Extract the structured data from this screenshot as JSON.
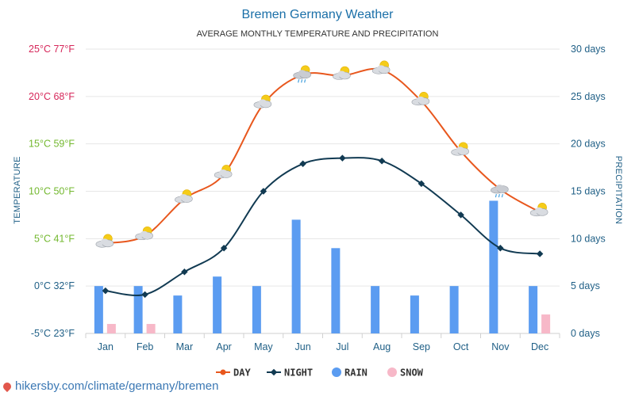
{
  "chart_data": {
    "type": "line",
    "title": "Bremen Germany Weather",
    "subtitle": "AVERAGE MONTHLY TEMPERATURE AND PRECIPITATION",
    "ylabel_left": "TEMPERATURE",
    "ylabel_right": "PRECIPITATION",
    "categories": [
      "Jan",
      "Feb",
      "Mar",
      "Apr",
      "May",
      "Jun",
      "Jul",
      "Aug",
      "Sep",
      "Oct",
      "Nov",
      "Dec"
    ],
    "left_axis": {
      "unit": "°C",
      "range": [
        -5,
        25
      ],
      "ticks": [
        {
          "value": -5,
          "label": "-5°C 23°F",
          "color": "#1f5f86"
        },
        {
          "value": 0,
          "label": "0°C 32°F",
          "color": "#1f5f86"
        },
        {
          "value": 5,
          "label": "5°C 41°F",
          "color": "#73b82f"
        },
        {
          "value": 10,
          "label": "10°C 50°F",
          "color": "#73b82f"
        },
        {
          "value": 15,
          "label": "15°C 59°F",
          "color": "#73b82f"
        },
        {
          "value": 20,
          "label": "20°C 68°F",
          "color": "#d6275a"
        },
        {
          "value": 25,
          "label": "25°C 77°F",
          "color": "#d6275a"
        }
      ]
    },
    "right_axis": {
      "unit": "days",
      "range": [
        0,
        30
      ],
      "ticks": [
        {
          "value": 0,
          "label": "0 days"
        },
        {
          "value": 5,
          "label": "5 days"
        },
        {
          "value": 10,
          "label": "10 days"
        },
        {
          "value": 15,
          "label": "15 days"
        },
        {
          "value": 20,
          "label": "20 days"
        },
        {
          "value": 25,
          "label": "25 days"
        },
        {
          "value": 30,
          "label": "30 days"
        }
      ]
    },
    "series": [
      {
        "name": "DAY",
        "kind": "line",
        "axis": "left",
        "color": "#e8571d",
        "values": [
          4.5,
          5.3,
          9.2,
          11.8,
          19.2,
          22.3,
          22.2,
          22.8,
          19.5,
          14.2,
          10.2,
          7.8
        ]
      },
      {
        "name": "NIGHT",
        "kind": "line",
        "axis": "left",
        "color": "#113a52",
        "values": [
          -0.5,
          -0.9,
          1.5,
          4.0,
          10.0,
          12.9,
          13.5,
          13.2,
          10.8,
          7.5,
          4.0,
          3.4
        ]
      },
      {
        "name": "RAIN",
        "kind": "bar",
        "axis": "right",
        "color": "#5b9cf1",
        "values": [
          5,
          5,
          4,
          6,
          5,
          12,
          9,
          5,
          4,
          5,
          14,
          5
        ]
      },
      {
        "name": "SNOW",
        "kind": "bar",
        "axis": "right",
        "color": "#f7b8c8",
        "values": [
          1,
          1,
          0,
          0,
          0,
          0,
          0,
          0,
          0,
          0,
          0,
          2
        ]
      }
    ],
    "weather_icons": [
      "cloudy-sun",
      "cloudy-sun",
      "cloudy-sun",
      "cloudy-sun",
      "cloudy-sun",
      "rain-sun",
      "cloudy-sun",
      "cloudy-sun",
      "cloudy-sun",
      "cloudy-sun",
      "rain-cloud",
      "cloudy-sun"
    ],
    "grid": true,
    "legend_position": "bottom-center"
  },
  "footer": {
    "icon": "location-pin-icon",
    "text": "hikersby.com/climate/germany/bremen"
  }
}
